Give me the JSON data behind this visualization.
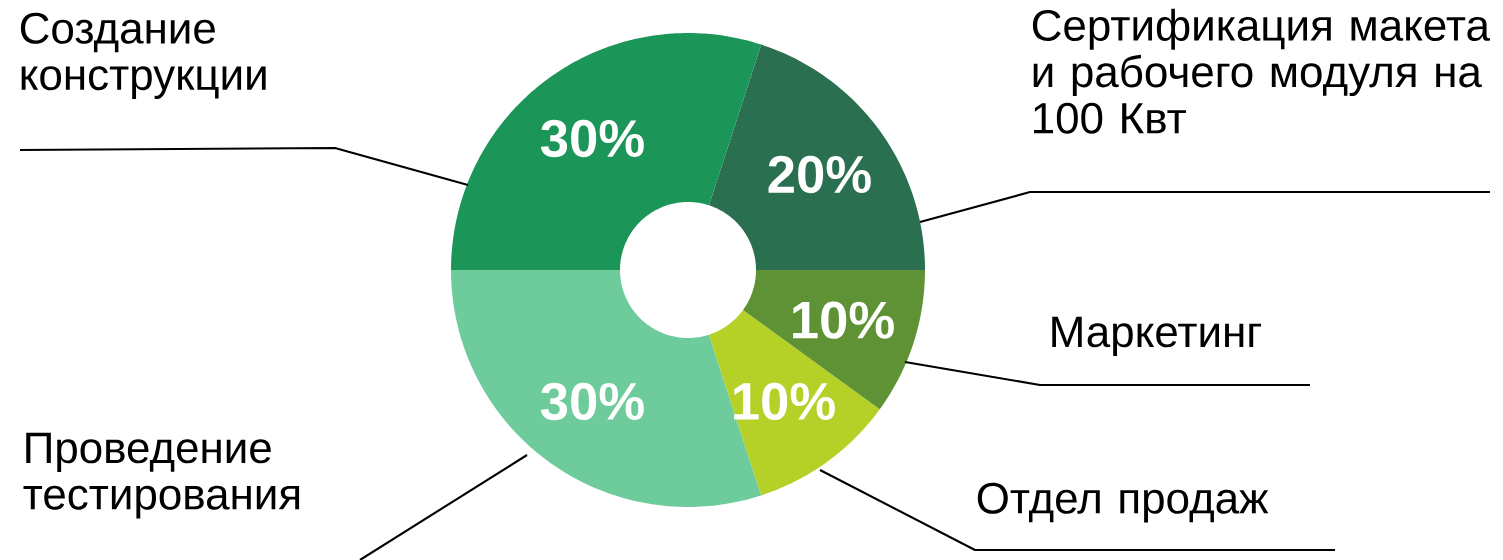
{
  "chart_data": {
    "type": "donut",
    "categories": [
      "Сертификация макета и рабочего модуля на 100 Квт",
      "Создание конструкции",
      "Проведение тестирования",
      "Отдел продаж",
      "Маркетинг"
    ],
    "values": [
      20,
      30,
      30,
      10,
      10
    ],
    "value_labels": [
      "20%",
      "30%",
      "30%",
      "10%",
      "10%"
    ],
    "colors": [
      "#2a7050",
      "#1b9658",
      "#6ecb9c",
      "#b5d027",
      "#5f9234"
    ]
  }
}
